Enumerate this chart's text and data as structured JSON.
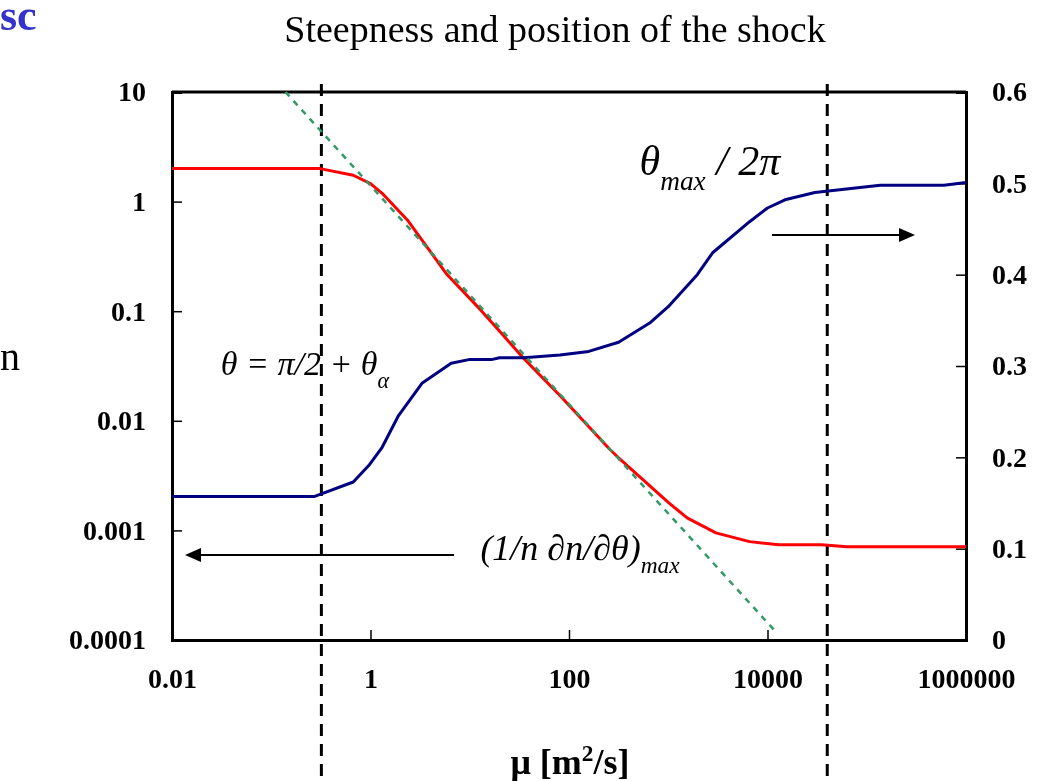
{
  "chart_data": {
    "type": "line",
    "title": "Steepness and position of the shock",
    "xlabel": "μ [m$^{2}$/s]",
    "ylabel": "n",
    "annotations": [
      "sc",
      "θ = π/2 + θ$_{α}$",
      "(1/n ∂n/∂θ)$_{max}$",
      "θ$_{max}$ / 2π"
    ],
    "log": "xy",
    "grid": false,
    "xlim": [
      0.01,
      1000000
    ],
    "xticks": [
      0.01,
      1,
      100,
      10000,
      1000000
    ],
    "ylim": [
      0.0001,
      10
    ],
    "yticks": [
      0.0001,
      0.001,
      0.01,
      0.1,
      1,
      10
    ],
    "y2lim": [
      0,
      0.6
    ],
    "y2ticks": [
      0,
      0.1,
      0.2,
      0.3,
      0.4,
      0.5,
      0.6
    ],
    "ref_lines": [
      {
        "axis": "x",
        "value": 0.32,
        "color": "#000000",
        "line_style": "dashed"
      },
      {
        "axis": "x",
        "value": 40000,
        "color": "#000000",
        "line_style": "dashed"
      }
    ],
    "series": [
      {
        "type": "line",
        "color": "#ff0000",
        "line_style": "solid",
        "x": [
          0.01,
          0.31,
          0.67,
          1,
          1.31,
          2.35,
          5.9,
          12.6,
          21.5,
          35,
          81,
          257,
          316,
          1000,
          1550,
          3020,
          6600,
          12900,
          35000,
          63000,
          1000000
        ],
        "values": [
          2,
          2,
          1.74,
          1.46,
          1.19,
          0.68,
          0.216,
          0.105,
          0.061,
          0.037,
          0.017,
          0.0055,
          0.0046,
          0.0018,
          0.0013,
          0.00095,
          0.00079,
          0.00074,
          0.00074,
          0.00071,
          0.00071
        ]
      },
      {
        "type": "line",
        "color": "#000080",
        "axis": "y2",
        "line_style": "solid",
        "x": [
          0.01,
          0.27,
          0.32,
          0.67,
          0.96,
          1.31,
          1.9,
          3.3,
          6.5,
          9.8,
          16.5,
          20,
          35,
          81,
          158,
          316,
          650,
          1000,
          1960,
          2800,
          6600,
          10000,
          15000,
          30000,
          137000,
          600000,
          1000000
        ],
        "values": [
          0.157,
          0.157,
          0.16,
          0.173,
          0.191,
          0.211,
          0.245,
          0.281,
          0.303,
          0.307,
          0.307,
          0.309,
          0.309,
          0.312,
          0.316,
          0.326,
          0.347,
          0.365,
          0.4,
          0.424,
          0.458,
          0.473,
          0.482,
          0.49,
          0.498,
          0.498,
          0.501
        ]
      },
      {
        "type": "line",
        "color": "#339966",
        "line_style": "dotted",
        "x": [
          0.139,
          12300
        ],
        "values": [
          10,
          0.000117
        ]
      }
    ]
  }
}
